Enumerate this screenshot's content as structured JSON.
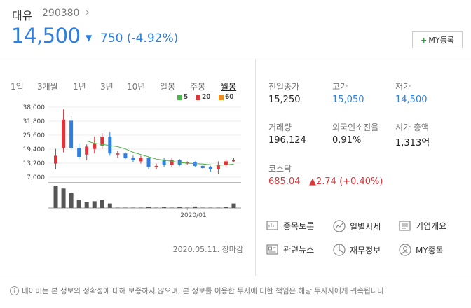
{
  "stock": {
    "name": "대유",
    "code": "290380",
    "price": "14,500",
    "change": "750 (-4.92%)",
    "direction": "down"
  },
  "my_button": "MY등록",
  "period_tabs": [
    "1일",
    "3개월",
    "1년",
    "3년",
    "10년",
    "일봉",
    "주봉",
    "월봉"
  ],
  "active_tab": "월봉",
  "legend": [
    {
      "label": "5",
      "color": "#4cb44a"
    },
    {
      "label": "20",
      "color": "#e0343a"
    },
    {
      "label": "60",
      "color": "#f08c1e"
    }
  ],
  "chart_data": {
    "type": "candlestick",
    "interval": "monthly",
    "y_ticks": [
      "38,000",
      "31,800",
      "25,600",
      "19,400",
      "13,200",
      "7,000"
    ],
    "ylim": [
      7000,
      38000
    ],
    "x_label": "2020/01",
    "candles": [
      {
        "o": 13000,
        "c": 16500,
        "h": 19500,
        "l": 10500
      },
      {
        "o": 20000,
        "c": 32500,
        "h": 37000,
        "l": 18000
      },
      {
        "o": 32000,
        "c": 20000,
        "h": 34000,
        "l": 18500
      },
      {
        "o": 20000,
        "c": 16000,
        "h": 22000,
        "l": 15000
      },
      {
        "o": 17000,
        "c": 20500,
        "h": 21500,
        "l": 14500
      },
      {
        "o": 19500,
        "c": 22000,
        "h": 25000,
        "l": 17500
      },
      {
        "o": 21000,
        "c": 25000,
        "h": 26500,
        "l": 19500
      },
      {
        "o": 25000,
        "c": 17500,
        "h": 27000,
        "l": 16500
      },
      {
        "o": 17000,
        "c": 17500,
        "h": 18500,
        "l": 15500
      },
      {
        "o": 17500,
        "c": 15500,
        "h": 18000,
        "l": 15000
      },
      {
        "o": 15500,
        "c": 14500,
        "h": 16500,
        "l": 13500
      },
      {
        "o": 14000,
        "c": 15500,
        "h": 16500,
        "l": 13000
      },
      {
        "o": 15500,
        "c": 11500,
        "h": 16000,
        "l": 10500
      },
      {
        "o": 11500,
        "c": 12000,
        "h": 13000,
        "l": 10500
      },
      {
        "o": 14500,
        "c": 12500,
        "h": 15500,
        "l": 11500
      },
      {
        "o": 12500,
        "c": 14500,
        "h": 15500,
        "l": 11500
      },
      {
        "o": 14500,
        "c": 12500,
        "h": 15000,
        "l": 12000
      },
      {
        "o": 13000,
        "c": 13500,
        "h": 14000,
        "l": 12500
      },
      {
        "o": 13500,
        "c": 12000,
        "h": 14000,
        "l": 11500
      },
      {
        "o": 12000,
        "c": 11000,
        "h": 12500,
        "l": 10500
      },
      {
        "o": 11500,
        "c": 10500,
        "h": 12000,
        "l": 9500
      },
      {
        "o": 10500,
        "c": 12500,
        "h": 14000,
        "l": 8500
      },
      {
        "o": 12500,
        "c": 14000,
        "h": 15000,
        "l": 11500
      },
      {
        "o": 14000,
        "c": 14500,
        "h": 15500,
        "l": 13500
      }
    ],
    "volume": [
      30,
      26,
      20,
      11,
      8,
      9,
      11,
      6,
      0.5,
      0.5,
      0.5,
      0.5,
      1.5,
      0.5,
      1,
      0.5,
      1,
      0.5,
      2,
      0.5,
      0.5,
      0.5,
      1,
      6
    ],
    "ma5": [
      null,
      null,
      null,
      null,
      23000,
      22000,
      21500,
      21000,
      20500,
      19500,
      18000,
      17000,
      16000,
      15000,
      14500,
      14000,
      13500,
      13200,
      13000,
      12800,
      12500,
      12300,
      12400,
      12800
    ],
    "moving_averages": [
      "5",
      "20",
      "60"
    ]
  },
  "chart_timestamp": "2020.05.11. 장마감",
  "stats": [
    {
      "label": "전일종가",
      "value": "15,250",
      "color": "default"
    },
    {
      "label": "고가",
      "value": "15,050",
      "color": "blue"
    },
    {
      "label": "저가",
      "value": "14,500",
      "color": "blue"
    },
    {
      "label": "거래량",
      "value": "196,124",
      "color": "default"
    },
    {
      "label": "외국인소진율",
      "value": "0.91%",
      "color": "default"
    },
    {
      "label": "시가 총액",
      "value": "1,313억",
      "color": "default"
    }
  ],
  "index": {
    "label": "코스닥",
    "value": "685.04",
    "change": "▲2.74 (+0.40%)"
  },
  "links": [
    {
      "label": "종목토론",
      "icon": "discussion-icon"
    },
    {
      "label": "일별시세",
      "icon": "trend-icon"
    },
    {
      "label": "기업개요",
      "icon": "company-info-icon"
    },
    {
      "label": "관련뉴스",
      "icon": "news-icon"
    },
    {
      "label": "재무정보",
      "icon": "pie-chart-icon"
    },
    {
      "label": "MY종목",
      "icon": "user-icon"
    }
  ],
  "disclaimer": "네이버는 본 정보의 정확성에 대해 보증하지 않으며, 본 정보를 이용한 투자에 대한 책임은 해당 투자자에게 귀속됩니다.",
  "colors": {
    "rise": "#e0343a",
    "fall": "#2f7fe0",
    "ma5": "#4cb44a"
  }
}
